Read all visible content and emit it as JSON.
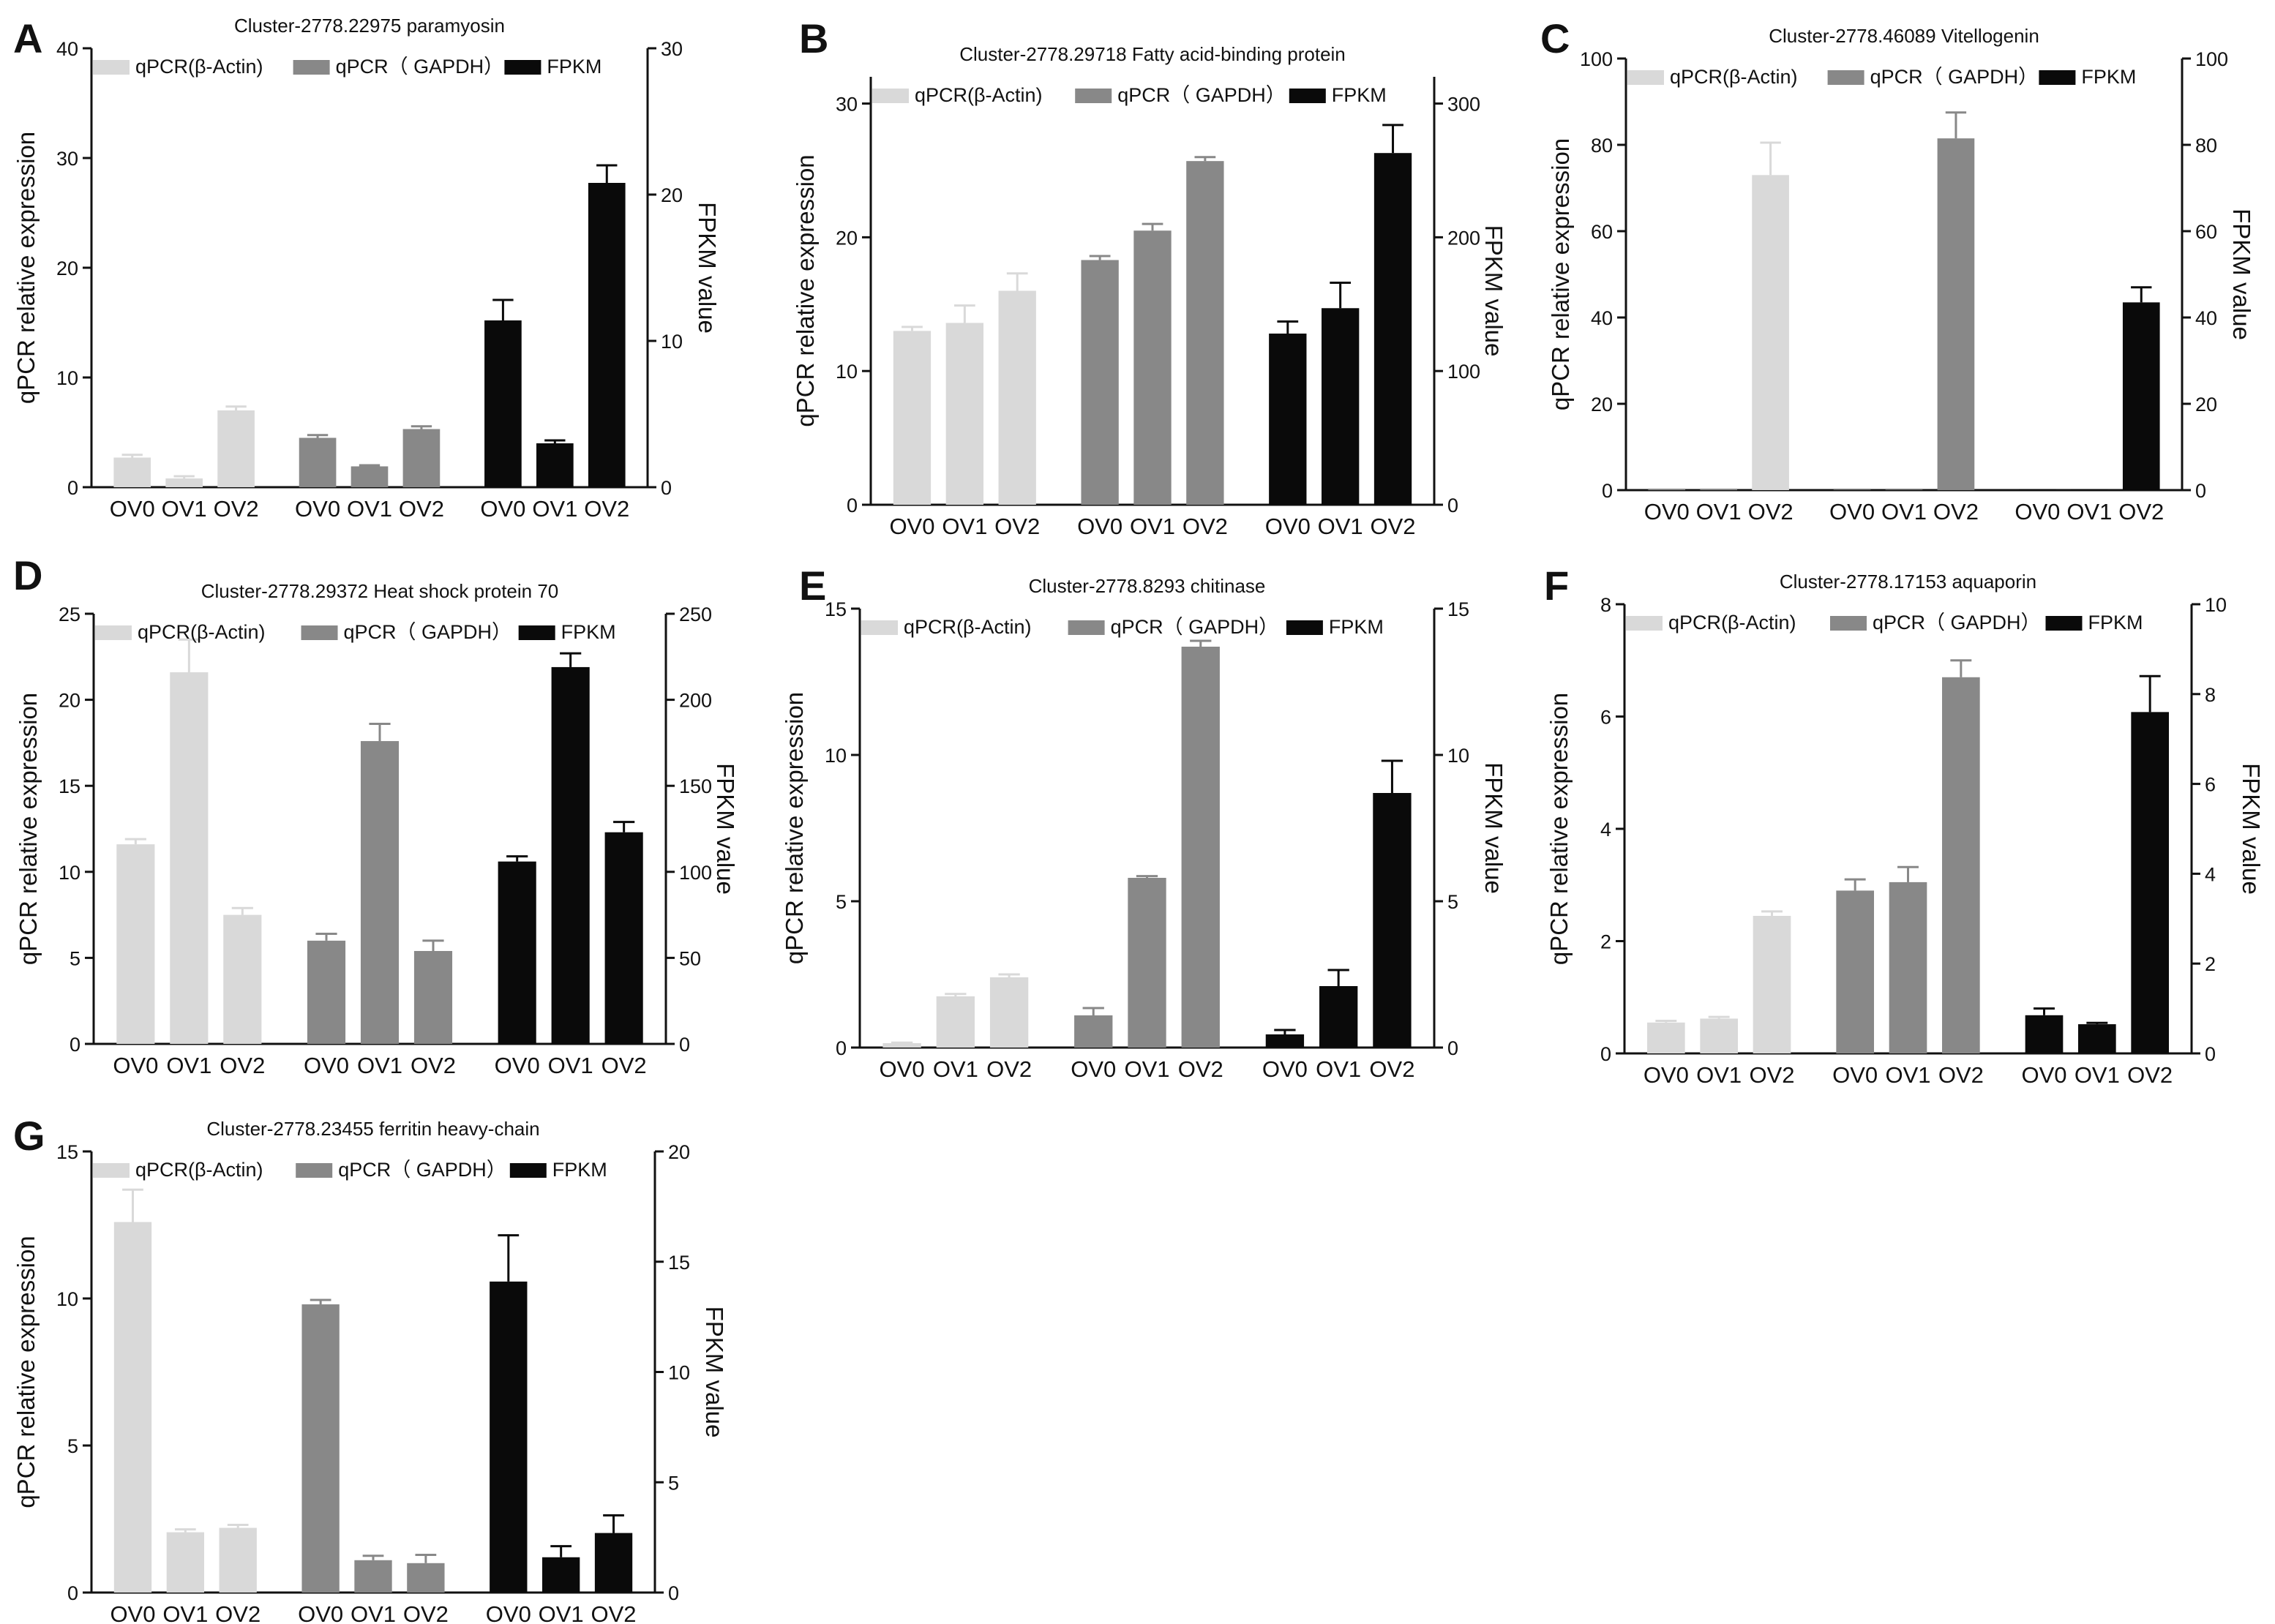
{
  "figure": {
    "groups": [
      "qPCR(β-Actin)",
      "qPCR(GAPDH)",
      "FPKM"
    ],
    "colors": {
      "actin": "#d9d9d9",
      "gapdh": "#888888",
      "fpkm": "#0a0a0a",
      "axis": "#111111"
    }
  },
  "chart_data": [
    {
      "panel": "A",
      "type": "bar",
      "title": "Cluster-2778.22975   paramyosin",
      "categories": [
        "OV0",
        "OV1",
        "OV2"
      ],
      "legend": [
        "qPCR(β-Actin)",
        "qPCR（ GAPDH）",
        "FPKM"
      ],
      "ylabel": "qPCR relative expression",
      "y2label": "FPKM  value",
      "ylim": [
        0,
        40
      ],
      "yticks": [
        0,
        10,
        20,
        30,
        40
      ],
      "y2lim": [
        0,
        30
      ],
      "y2ticks": [
        0,
        10,
        20,
        30
      ],
      "series": [
        {
          "name": "qPCR(β-Actin)",
          "axis": "left",
          "values": [
            2.7,
            0.8,
            7.0
          ],
          "errors": [
            0.25,
            0.2,
            0.35
          ]
        },
        {
          "name": "qPCR(GAPDH)",
          "axis": "left",
          "values": [
            4.5,
            1.9,
            5.3
          ],
          "errors": [
            0.25,
            0.1,
            0.25
          ]
        },
        {
          "name": "FPKM",
          "axis": "right",
          "values": [
            11.4,
            3.0,
            20.8
          ],
          "errors": [
            1.4,
            0.2,
            1.2
          ]
        }
      ]
    },
    {
      "panel": "B",
      "type": "bar",
      "title": "Cluster-2778.29718 Fatty acid-binding protein",
      "categories": [
        "OV0",
        "OV1",
        "OV2"
      ],
      "legend": [
        "qPCR(β-Actin)",
        "qPCR（ GAPDH）",
        "FPKM"
      ],
      "ylabel": "qPCR relative expression",
      "y2label": "FPKM  value",
      "ylim": [
        0,
        32
      ],
      "yticks": [
        0,
        10,
        20,
        30
      ],
      "y2lim": [
        0,
        320
      ],
      "y2ticks": [
        0,
        100,
        200,
        300
      ],
      "series": [
        {
          "name": "qPCR(β-Actin)",
          "axis": "left",
          "values": [
            13.0,
            13.6,
            16.0
          ],
          "errors": [
            0.3,
            1.3,
            1.3
          ]
        },
        {
          "name": "qPCR(GAPDH)",
          "axis": "left",
          "values": [
            18.3,
            20.5,
            25.7
          ],
          "errors": [
            0.3,
            0.5,
            0.3
          ]
        },
        {
          "name": "FPKM",
          "axis": "right",
          "values": [
            128,
            147,
            263
          ],
          "errors": [
            9,
            19,
            21
          ]
        }
      ]
    },
    {
      "panel": "C",
      "type": "bar",
      "title": "Cluster-2778.46089  Vitellogenin",
      "categories": [
        "OV0",
        "OV1",
        "OV2"
      ],
      "legend": [
        "qPCR(β-Actin)",
        "qPCR（ GAPDH）",
        "FPKM"
      ],
      "ylabel": "qPCR relative expression",
      "y2label": "FPKM  value",
      "ylim": [
        0,
        100
      ],
      "yticks": [
        0,
        20,
        40,
        60,
        80,
        100
      ],
      "y2lim": [
        0,
        100
      ],
      "y2ticks": [
        0,
        20,
        40,
        60,
        80,
        100
      ],
      "series": [
        {
          "name": "qPCR(β-Actin)",
          "axis": "left",
          "values": [
            0.1,
            0.1,
            73.0
          ],
          "errors": [
            0,
            0,
            7.5
          ]
        },
        {
          "name": "qPCR(GAPDH)",
          "axis": "left",
          "values": [
            0.1,
            0.1,
            81.5
          ],
          "errors": [
            0,
            0,
            6.0
          ]
        },
        {
          "name": "FPKM",
          "axis": "right",
          "values": [
            0.2,
            0.1,
            43.5
          ],
          "errors": [
            0,
            0,
            3.5
          ]
        }
      ]
    },
    {
      "panel": "D",
      "type": "bar",
      "title": "Cluster-2778.29372   Heat shock protein 70",
      "categories": [
        "OV0",
        "OV1",
        "OV2"
      ],
      "legend": [
        "qPCR(β-Actin)",
        "qPCR（ GAPDH）",
        "FPKM"
      ],
      "ylabel": "qPCR relative expression",
      "y2label": "FPKM  value",
      "ylim": [
        0,
        25
      ],
      "yticks": [
        0,
        5,
        10,
        15,
        20,
        25
      ],
      "y2lim": [
        0,
        250
      ],
      "y2ticks": [
        0,
        50,
        100,
        150,
        200,
        250
      ],
      "series": [
        {
          "name": "qPCR(β-Actin)",
          "axis": "left",
          "values": [
            11.6,
            21.6,
            7.5
          ],
          "errors": [
            0.3,
            1.9,
            0.4
          ]
        },
        {
          "name": "qPCR(GAPDH)",
          "axis": "left",
          "values": [
            6.0,
            17.6,
            5.4
          ],
          "errors": [
            0.4,
            1.0,
            0.6
          ]
        },
        {
          "name": "FPKM",
          "axis": "right",
          "values": [
            106,
            219,
            123
          ],
          "errors": [
            3,
            8,
            6
          ]
        }
      ]
    },
    {
      "panel": "E",
      "type": "bar",
      "title": "Cluster-2778.8293  chitinase",
      "categories": [
        "OV0",
        "OV1",
        "OV2"
      ],
      "legend": [
        "qPCR(β-Actin)",
        "qPCR（ GAPDH）",
        "FPKM"
      ],
      "ylabel": "qPCR relative expression",
      "y2label": "FPKM  value",
      "ylim": [
        0,
        15
      ],
      "yticks": [
        0,
        5,
        10,
        15
      ],
      "y2lim": [
        0,
        15
      ],
      "y2ticks": [
        0,
        5,
        10,
        15
      ],
      "series": [
        {
          "name": "qPCR(β-Actin)",
          "axis": "left",
          "values": [
            0.15,
            1.75,
            2.4
          ],
          "errors": [
            0.02,
            0.08,
            0.1
          ]
        },
        {
          "name": "qPCR(GAPDH)",
          "axis": "left",
          "values": [
            1.1,
            5.8,
            13.7
          ],
          "errors": [
            0.25,
            0.06,
            0.2
          ]
        },
        {
          "name": "FPKM",
          "axis": "right",
          "values": [
            0.45,
            2.1,
            8.7
          ],
          "errors": [
            0.15,
            0.55,
            1.1
          ]
        }
      ]
    },
    {
      "panel": "F",
      "type": "bar",
      "title": "Cluster-2778.17153  aquaporin",
      "categories": [
        "OV0",
        "OV1",
        "OV2"
      ],
      "legend": [
        "qPCR(β-Actin)",
        "qPCR（ GAPDH）",
        "FPKM"
      ],
      "ylabel": "qPCR relative expression",
      "y2label": "FPKM  value",
      "ylim": [
        0,
        8
      ],
      "yticks": [
        0,
        2,
        4,
        6,
        8
      ],
      "y2lim": [
        0,
        10
      ],
      "y2ticks": [
        0,
        2,
        4,
        6,
        8,
        10
      ],
      "series": [
        {
          "name": "qPCR(β-Actin)",
          "axis": "left",
          "values": [
            0.55,
            0.62,
            2.45
          ],
          "errors": [
            0.03,
            0.03,
            0.08
          ]
        },
        {
          "name": "qPCR(GAPDH)",
          "axis": "left",
          "values": [
            2.9,
            3.05,
            6.7
          ],
          "errors": [
            0.2,
            0.27,
            0.3
          ]
        },
        {
          "name": "FPKM",
          "axis": "right",
          "values": [
            0.85,
            0.65,
            7.6
          ],
          "errors": [
            0.15,
            0.03,
            0.8
          ]
        }
      ]
    },
    {
      "panel": "G",
      "type": "bar",
      "title": "Cluster-2778.23455  ferritin heavy-chain",
      "categories": [
        "OV0",
        "OV1",
        "OV2"
      ],
      "legend": [
        "qPCR(β-Actin)",
        "qPCR（ GAPDH）",
        "FPKM"
      ],
      "ylabel": "qPCR relative expression",
      "y2label": "FPKM  value",
      "ylim": [
        0,
        15
      ],
      "yticks": [
        0,
        5,
        10,
        15
      ],
      "y2lim": [
        0,
        20
      ],
      "y2ticks": [
        0,
        5,
        10,
        15,
        20
      ],
      "series": [
        {
          "name": "qPCR(β-Actin)",
          "axis": "left",
          "values": [
            12.6,
            2.05,
            2.2
          ],
          "errors": [
            1.1,
            0.1,
            0.1
          ]
        },
        {
          "name": "qPCR(GAPDH)",
          "axis": "left",
          "values": [
            9.8,
            1.1,
            1.0
          ],
          "errors": [
            0.15,
            0.15,
            0.28
          ]
        },
        {
          "name": "FPKM",
          "axis": "right",
          "values": [
            14.1,
            1.6,
            2.7
          ],
          "errors": [
            2.1,
            0.5,
            0.8
          ]
        }
      ]
    }
  ]
}
